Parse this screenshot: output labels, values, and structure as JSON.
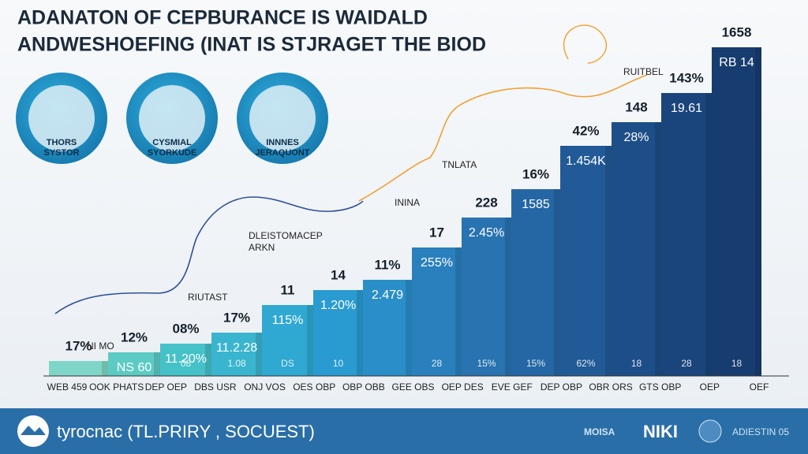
{
  "header": {
    "title_lines": [
      "ADANATON OF CEPBURANCE IS WAIDALD",
      "ANDWESHOEFING (INAT IS STJRAGET THE BIOD"
    ]
  },
  "badges": [
    {
      "label_lines": [
        "THORS",
        "SYSTOR"
      ]
    },
    {
      "label_lines": [
        "CYSMIAL",
        "SYORKUDE"
      ]
    },
    {
      "label_lines": [
        "INNNES",
        "JERAQUONT"
      ]
    }
  ],
  "annotations": [
    "RUITBEL",
    "TNLATA",
    "ININA",
    "DLEISTOMACEP",
    "ARKN",
    "RIUTAST",
    "NI MO"
  ],
  "steps": [
    {
      "top": "17%",
      "inner": "",
      "base": ""
    },
    {
      "top": "12%",
      "inner": "NS 60",
      "base": ""
    },
    {
      "top": "08%",
      "inner": "11.20%",
      "base": "08"
    },
    {
      "top": "17%",
      "inner": "11.2.28",
      "base": "1.08"
    },
    {
      "top": "11",
      "inner": "115%",
      "base": "DS"
    },
    {
      "top": "14",
      "inner": "1.20%",
      "base": "10"
    },
    {
      "top": "11%",
      "inner": "2.479",
      "base": ""
    },
    {
      "top": "17",
      "inner": "255%",
      "base": "28"
    },
    {
      "top": "228",
      "inner": "2.45%",
      "base": "15%"
    },
    {
      "top": "16%",
      "inner": "1585",
      "base": "15%"
    },
    {
      "top": "42%",
      "inner": "1.454K",
      "base": "62%"
    },
    {
      "top": "148",
      "inner": "28%",
      "base": "18"
    },
    {
      "top": "143%",
      "inner": "19.61",
      "base": "28"
    },
    {
      "top": "1658",
      "inner": "RB 14",
      "base": "18"
    }
  ],
  "axis_labels": [
    "WEB 459",
    "OOK PHATS",
    "DEP OEP",
    "DBS USR",
    "ONJ VOS",
    "OES OBP",
    "OBP OBB",
    "GEE OBS",
    "OEP DES",
    "EVE GEF",
    "DEP OBP",
    "OBR ORS",
    "GTS OBP",
    "OEP",
    "OEF"
  ],
  "footer": {
    "brand": "tyrocnac (TL.PRIRY , SOCUEST)",
    "right": [
      "MOISA",
      "NIKI",
      "ADIESTIN 05"
    ]
  }
}
